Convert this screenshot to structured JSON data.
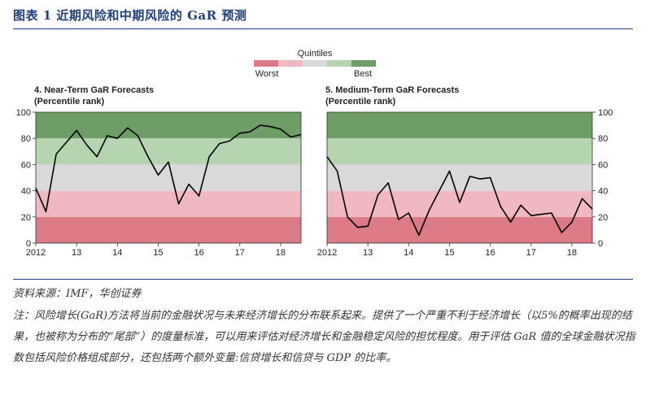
{
  "figure": {
    "title": "图表 1 近期风险和中期风险的 GaR 预测",
    "source": "资料来源：IMF，华创证券",
    "note": "注：风险增长(GaR)方法将当前的金融状况与未来经济增长的分布联系起来。提供了一个严重不利于经济增长（以5%的概率出现的结果，也被称为分布的“尾部”）的度量标准，可以用来评估对经济增长和金融稳定风险的担忧程度。用于评估 GaR 值的全球金融状况指数包括风险价格组成部分，还包括两个额外变量:信贷增长和信贷与 GDP 的比率。"
  },
  "legend": {
    "title": "Quintiles",
    "low_label": "Worst",
    "high_label": "Best",
    "colors": [
      "#dc7a86",
      "#f0b8c0",
      "#d9d9d9",
      "#b7d4b0",
      "#6d9e65"
    ]
  },
  "chart_data": [
    {
      "type": "line",
      "title": "4. Near-Term GaR Forecasts",
      "subtitle": "(Percentile rank)",
      "ylim": [
        0,
        100
      ],
      "yticks": [
        0,
        20,
        40,
        60,
        80,
        100
      ],
      "xlim": [
        2012,
        2018.5
      ],
      "xticks": [
        2012,
        2013,
        2014,
        2015,
        2016,
        2017,
        2018
      ],
      "xtick_labels": [
        "2012",
        "13",
        "14",
        "15",
        "16",
        "17",
        "18"
      ],
      "axis_side": "left",
      "bands": [
        [
          0,
          20
        ],
        [
          20,
          40
        ],
        [
          40,
          60
        ],
        [
          60,
          80
        ],
        [
          80,
          100
        ]
      ],
      "x": [
        2012.0,
        2012.25,
        2012.5,
        2012.75,
        2013.0,
        2013.25,
        2013.5,
        2013.75,
        2014.0,
        2014.25,
        2014.5,
        2014.75,
        2015.0,
        2015.25,
        2015.5,
        2015.75,
        2016.0,
        2016.25,
        2016.5,
        2016.75,
        2017.0,
        2017.25,
        2017.5,
        2017.75,
        2018.0,
        2018.25,
        2018.5
      ],
      "values": [
        42,
        24,
        68,
        77,
        86,
        75,
        66,
        82,
        80,
        88,
        82,
        66,
        52,
        62,
        30,
        45,
        36,
        66,
        76,
        78,
        84,
        85,
        90,
        89,
        87,
        81,
        83
      ]
    },
    {
      "type": "line",
      "title": "5. Medium-Term GaR Forecasts",
      "subtitle": "(Percentile rank)",
      "ylim": [
        0,
        100
      ],
      "yticks": [
        0,
        20,
        40,
        60,
        80,
        100
      ],
      "xlim": [
        2012,
        2018.5
      ],
      "xticks": [
        2012,
        2013,
        2014,
        2015,
        2016,
        2017,
        2018
      ],
      "xtick_labels": [
        "2012",
        "13",
        "14",
        "15",
        "16",
        "17",
        "18"
      ],
      "axis_side": "right",
      "bands": [
        [
          0,
          20
        ],
        [
          20,
          40
        ],
        [
          40,
          60
        ],
        [
          60,
          80
        ],
        [
          80,
          100
        ]
      ],
      "x": [
        2012.0,
        2012.25,
        2012.5,
        2012.75,
        2013.0,
        2013.25,
        2013.5,
        2013.75,
        2014.0,
        2014.25,
        2014.5,
        2014.75,
        2015.0,
        2015.25,
        2015.5,
        2015.75,
        2016.0,
        2016.25,
        2016.5,
        2016.75,
        2017.0,
        2017.25,
        2017.5,
        2017.75,
        2018.0,
        2018.25,
        2018.5
      ],
      "values": [
        66,
        55,
        20,
        12,
        13,
        37,
        46,
        18,
        23,
        6,
        25,
        40,
        55,
        31,
        51,
        49,
        50,
        28,
        16,
        29,
        21,
        22,
        23,
        8,
        16,
        34,
        26
      ]
    }
  ]
}
